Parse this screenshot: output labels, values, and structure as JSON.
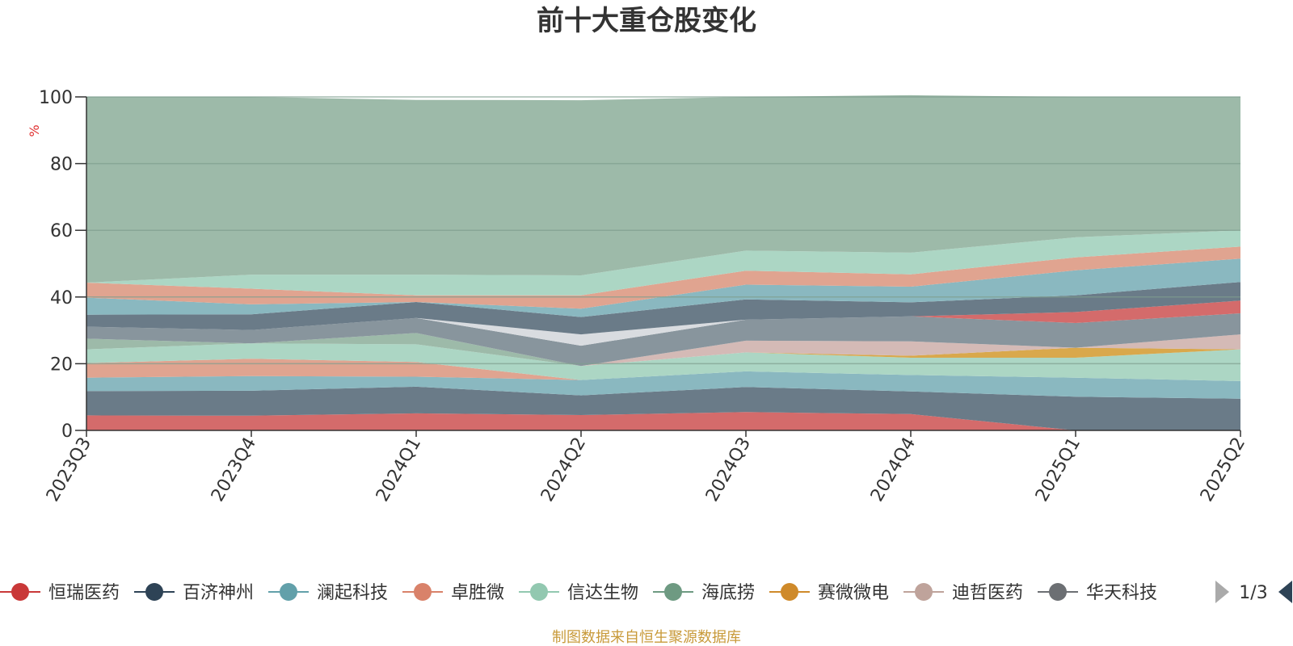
{
  "chart_data": {
    "type": "area",
    "stacked": true,
    "title": "前十大重仓股变化",
    "ylabel": "%",
    "ylim": [
      0,
      100
    ],
    "yticks": [
      0,
      20,
      40,
      60,
      80,
      100
    ],
    "grid": true,
    "legend_position": "bottom",
    "categories": [
      "2023Q3",
      "2023Q4",
      "2024Q1",
      "2024Q2",
      "2024Q3",
      "2024Q4",
      "2025Q1",
      "2025Q2"
    ],
    "series": [
      {
        "name": "恒瑞医药",
        "color": "#d46b6b",
        "values": [
          4.5,
          4.4,
          5.1,
          4.6,
          5.5,
          4.9,
          0,
          0
        ]
      },
      {
        "name": "百济神州",
        "color": "#6a7b88",
        "values": [
          7.3,
          7.5,
          8.0,
          5.9,
          7.5,
          6.8,
          10.1,
          9.5
        ]
      },
      {
        "name": "澜起科技",
        "color": "#8ab8c0",
        "values": [
          4.0,
          4.4,
          3.0,
          4.6,
          4.7,
          4.9,
          5.7,
          5.3
        ]
      },
      {
        "name": "卓胜微",
        "color": "#e0a490",
        "values": [
          4.4,
          5.2,
          4.4,
          0,
          0,
          0,
          0,
          0
        ]
      },
      {
        "name": "信达生物",
        "color": "#acd6c4",
        "values": [
          4.1,
          4.6,
          5.3,
          4.2,
          5.7,
          5.2,
          6.0,
          9.5
        ]
      },
      {
        "name": "海底捞",
        "color": "#9dbaa9",
        "values": [
          3.2,
          0,
          3.4,
          0,
          0,
          0,
          0,
          0
        ]
      },
      {
        "name": "赛微微电",
        "color": "#d9a84c",
        "values": [
          0,
          0,
          0,
          0,
          0,
          0.6,
          3.0,
          0
        ]
      },
      {
        "name": "迪哲医药",
        "color": "#d4bab6",
        "values": [
          0,
          0,
          0,
          0,
          3.5,
          4.3,
          0,
          4.5
        ]
      },
      {
        "name": "华天科技",
        "color": "#9a9ea3",
        "values": [
          0,
          0,
          0,
          0,
          0,
          0,
          0,
          0
        ]
      },
      {
        "name": "",
        "color": "#88959d",
        "values": [
          3.6,
          4.0,
          4.5,
          6.1,
          6.3,
          7.5,
          7.4,
          6.3
        ]
      },
      {
        "name": "",
        "color": "#d9dce0",
        "values": [
          0,
          0,
          0,
          3.4,
          0,
          0,
          0,
          0
        ]
      },
      {
        "name": "",
        "color": "#d46b6b",
        "values": [
          0,
          0,
          0,
          0,
          0,
          0,
          3.3,
          3.8
        ]
      },
      {
        "name": "",
        "color": "#6a7b88",
        "values": [
          3.6,
          4.7,
          4.8,
          5.2,
          6.1,
          4.2,
          5.0,
          5.6
        ]
      },
      {
        "name": "",
        "color": "#8ab8c0",
        "values": [
          5.1,
          3.0,
          0,
          2.5,
          4.4,
          4.7,
          7.5,
          7.0
        ]
      },
      {
        "name": "",
        "color": "#e0a490",
        "values": [
          4.5,
          4.7,
          2.0,
          4.0,
          4.2,
          3.7,
          3.9,
          3.6
        ]
      },
      {
        "name": "",
        "color": "#acd6c4",
        "values": [
          0,
          4.2,
          6.2,
          6.0,
          6.0,
          6.5,
          6.0,
          4.9
        ]
      },
      {
        "name": "",
        "color": "#9dbaa9",
        "values": [
          55.7,
          53.3,
          52.4,
          52.5,
          46.1,
          47.2,
          42.1,
          40.0
        ]
      }
    ]
  },
  "legend": {
    "items": [
      {
        "name": "恒瑞医药",
        "color": "#c93838"
      },
      {
        "name": "百济神州",
        "color": "#2e4356"
      },
      {
        "name": "澜起科技",
        "color": "#62a0aa"
      },
      {
        "name": "卓胜微",
        "color": "#d9826a"
      },
      {
        "name": "信达生物",
        "color": "#92c8b0"
      },
      {
        "name": "海底捞",
        "color": "#6e9a82"
      },
      {
        "name": "赛微微电",
        "color": "#cf8a2a"
      },
      {
        "name": "迪哲医药",
        "color": "#bfa39b"
      },
      {
        "name": "华天科技",
        "color": "#6c6f73"
      }
    ],
    "page": "1/3",
    "arrow_prev_color": "#aaaaaa",
    "arrow_next_color": "#2e4356"
  },
  "source": "制图数据来自恒生聚源数据库"
}
